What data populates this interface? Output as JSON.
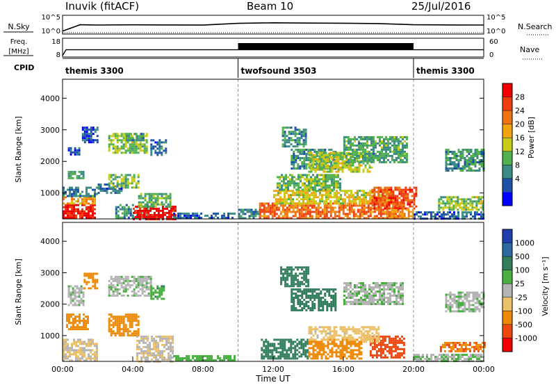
{
  "header": {
    "station": "Inuvik (fitACF)",
    "beam": "Beam 10",
    "date": "25/Jul/2016"
  },
  "param_panels": {
    "nsky_label": "N.Sky",
    "nsky_ticks": [
      "10^5",
      "10^0"
    ],
    "nsearch_label": "N.Search",
    "nsearch_ticks": [
      "10^5",
      "10^0"
    ],
    "freq_label": "Freq.",
    "freq_unit": "[MHz]",
    "freq_ticks": [
      "18",
      "8"
    ],
    "nave_label": "Nave",
    "nave_ticks": [
      "60",
      "0"
    ],
    "cpid_label": "CPID"
  },
  "colors": {
    "power": [
      "#0000ff",
      "#1d52a6",
      "#3a8a86",
      "#53b04f",
      "#c8cc16",
      "#f0a40f",
      "#ee7412",
      "#ee3d0f",
      "#ee0000"
    ],
    "velocity": [
      "#1f3fae",
      "#2d6aa0",
      "#327e5c",
      "#48b040",
      "#b4b4b4",
      "#ecc068",
      "#ec8a08",
      "#ee4810",
      "#ee0000"
    ]
  },
  "chart_data": [
    {
      "type": "line",
      "title": "N.Sky / N.Search",
      "x_ticks": [],
      "yscale": "log",
      "series": [
        {
          "name": "N.Sky",
          "x": [
            0,
            1,
            2,
            4,
            6,
            8,
            10,
            12,
            14,
            16,
            18,
            20,
            22,
            24
          ],
          "values": [
            3,
            300,
            250,
            280,
            260,
            240,
            800,
            1200,
            1000,
            900,
            700,
            300,
            260,
            250
          ]
        },
        {
          "name": "N.Search",
          "x": [
            0,
            24
          ],
          "values": [
            1,
            1
          ]
        }
      ]
    },
    {
      "type": "line",
      "title": "Freq. / Nave",
      "series": [
        {
          "name": "Freq.",
          "x": [
            0,
            0.2,
            24
          ],
          "values": [
            8,
            11.5,
            11.5
          ]
        },
        {
          "name": "Nave",
          "x": [
            0,
            10,
            10,
            20,
            20,
            24
          ],
          "values": [
            20,
            20,
            45,
            45,
            20,
            20
          ]
        }
      ]
    },
    {
      "type": "table",
      "title": "CPID",
      "segments": [
        {
          "label": "themis 3300",
          "start": 0,
          "end": 10
        },
        {
          "label": "twofsound 3503",
          "start": 10,
          "end": 20
        },
        {
          "label": "themis 3300",
          "start": 20,
          "end": 24
        }
      ]
    },
    {
      "type": "heatmap",
      "quantity": "power",
      "ylabel": "Slant Range [km]",
      "xlim": [
        0,
        24
      ],
      "ylim": [
        180,
        4600
      ],
      "y_ticks": [
        1000,
        2000,
        3000,
        4000
      ],
      "colorbar": {
        "label": "Power [dB]",
        "ticks": [
          "28",
          "24",
          "20",
          "16",
          "12",
          "8",
          "4"
        ],
        "min": 0,
        "max": 32
      },
      "blobs": [
        {
          "t0": 0.0,
          "t1": 1.9,
          "r0": 200,
          "r1": 650,
          "v": 30
        },
        {
          "t0": 0.0,
          "t1": 1.9,
          "r0": 650,
          "r1": 900,
          "v": 20
        },
        {
          "t0": 0.0,
          "t1": 2.0,
          "r0": 900,
          "r1": 1200,
          "v": 8
        },
        {
          "t0": 0.3,
          "t1": 1.2,
          "r0": 1500,
          "r1": 1700,
          "v": 10
        },
        {
          "t0": 0.3,
          "t1": 1.0,
          "r0": 2200,
          "r1": 2450,
          "v": 6
        },
        {
          "t0": 1.1,
          "t1": 2.0,
          "r0": 2600,
          "r1": 3100,
          "v": 5
        },
        {
          "t0": 2.0,
          "t1": 3.4,
          "r0": 1000,
          "r1": 1300,
          "v": 7
        },
        {
          "t0": 2.6,
          "t1": 4.3,
          "r0": 1200,
          "r1": 1600,
          "v": 13
        },
        {
          "t0": 2.6,
          "t1": 4.8,
          "r0": 2300,
          "r1": 2900,
          "v": 14
        },
        {
          "t0": 3.6,
          "t1": 4.6,
          "r0": 2700,
          "r1": 2900,
          "v": 10
        },
        {
          "t0": 3.0,
          "t1": 4.8,
          "r0": 200,
          "r1": 650,
          "v": 9
        },
        {
          "t0": 4.0,
          "t1": 6.4,
          "r0": 200,
          "r1": 600,
          "v": 30
        },
        {
          "t0": 4.3,
          "t1": 6.2,
          "r0": 600,
          "r1": 1000,
          "v": 12
        },
        {
          "t0": 5.0,
          "t1": 5.9,
          "r0": 2200,
          "r1": 2700,
          "v": 7
        },
        {
          "t0": 6.3,
          "t1": 9.8,
          "r0": 200,
          "r1": 380,
          "v": 6
        },
        {
          "t0": 10.0,
          "t1": 11.2,
          "r0": 200,
          "r1": 500,
          "v": 9
        },
        {
          "t0": 11.2,
          "t1": 19.5,
          "r0": 200,
          "r1": 700,
          "v": 24
        },
        {
          "t0": 12.0,
          "t1": 18.8,
          "r0": 700,
          "r1": 1100,
          "v": 17
        },
        {
          "t0": 12.2,
          "t1": 15.8,
          "r0": 1100,
          "r1": 1600,
          "v": 13
        },
        {
          "t0": 12.5,
          "t1": 13.9,
          "r0": 2500,
          "r1": 3100,
          "v": 9
        },
        {
          "t0": 13.0,
          "t1": 15.5,
          "r0": 1800,
          "r1": 2400,
          "v": 10
        },
        {
          "t0": 14.0,
          "t1": 17.6,
          "r0": 1700,
          "r1": 2300,
          "v": 15
        },
        {
          "t0": 16.0,
          "t1": 19.6,
          "r0": 2000,
          "r1": 2800,
          "v": 11
        },
        {
          "t0": 17.6,
          "t1": 20.2,
          "r0": 500,
          "r1": 1200,
          "v": 26
        },
        {
          "t0": 18.6,
          "t1": 20.0,
          "r0": 200,
          "r1": 500,
          "v": 22
        },
        {
          "t0": 20.0,
          "t1": 24.0,
          "r0": 200,
          "r1": 420,
          "v": 6
        },
        {
          "t0": 21.4,
          "t1": 24.0,
          "r0": 500,
          "r1": 900,
          "v": 14
        },
        {
          "t0": 21.8,
          "t1": 24.0,
          "r0": 1700,
          "r1": 2400,
          "v": 10
        }
      ]
    },
    {
      "type": "heatmap",
      "quantity": "velocity",
      "ylabel": "Slant Range [km]",
      "xlabel": "Time UT",
      "xlim": [
        0,
        24
      ],
      "ylim": [
        180,
        4600
      ],
      "y_ticks": [
        1000,
        2000,
        3000,
        4000
      ],
      "x_ticks": [
        "00:00",
        "04:00",
        "08:00",
        "12:00",
        "16:00",
        "20:00",
        "00:00"
      ],
      "colorbar": {
        "label": "Velocity [m s⁻¹]",
        "ticks": [
          "1000",
          "500",
          "100",
          "25",
          "-25",
          "-100",
          "-500",
          "-1000"
        ]
      },
      "blobs": [
        {
          "t0": 0.0,
          "t1": 2.0,
          "r0": 200,
          "r1": 900,
          "v": -30
        },
        {
          "t0": 0.2,
          "t1": 1.4,
          "r0": 1200,
          "r1": 1700,
          "v": -250
        },
        {
          "t0": 0.3,
          "t1": 1.2,
          "r0": 2000,
          "r1": 2600,
          "v": 10
        },
        {
          "t0": 1.2,
          "t1": 2.0,
          "r0": 2500,
          "r1": 3000,
          "v": -200
        },
        {
          "t0": 2.6,
          "t1": 4.3,
          "r0": 1000,
          "r1": 1700,
          "v": -250
        },
        {
          "t0": 2.6,
          "t1": 5.0,
          "r0": 2300,
          "r1": 2900,
          "v": 10
        },
        {
          "t0": 4.2,
          "t1": 6.3,
          "r0": 200,
          "r1": 1000,
          "v": -15
        },
        {
          "t0": 5.0,
          "t1": 5.8,
          "r0": 2200,
          "r1": 2600,
          "v": 80
        },
        {
          "t0": 6.3,
          "t1": 9.8,
          "r0": 200,
          "r1": 380,
          "v": 60
        },
        {
          "t0": 11.3,
          "t1": 14.0,
          "r0": 300,
          "r1": 900,
          "v": 200
        },
        {
          "t0": 12.4,
          "t1": 14.0,
          "r0": 2600,
          "r1": 3200,
          "v": 150
        },
        {
          "t0": 13.0,
          "t1": 15.5,
          "r0": 1800,
          "r1": 2500,
          "v": 400
        },
        {
          "t0": 14.0,
          "t1": 17.0,
          "r0": 300,
          "r1": 900,
          "v": -250
        },
        {
          "t0": 14.0,
          "t1": 17.5,
          "r0": 900,
          "r1": 1300,
          "v": -50
        },
        {
          "t0": 16.0,
          "t1": 19.4,
          "r0": 2000,
          "r1": 2700,
          "v": 10
        },
        {
          "t0": 17.5,
          "t1": 19.5,
          "r0": 300,
          "r1": 1000,
          "v": -550
        },
        {
          "t0": 17.0,
          "t1": 18.0,
          "r0": 800,
          "r1": 1300,
          "v": -60
        },
        {
          "t0": 20.0,
          "t1": 24.0,
          "r0": 200,
          "r1": 420,
          "v": 20
        },
        {
          "t0": 21.5,
          "t1": 24.0,
          "r0": 500,
          "r1": 800,
          "v": -500
        },
        {
          "t0": 21.8,
          "t1": 24.0,
          "r0": 1800,
          "r1": 2400,
          "v": 10
        }
      ]
    }
  ]
}
